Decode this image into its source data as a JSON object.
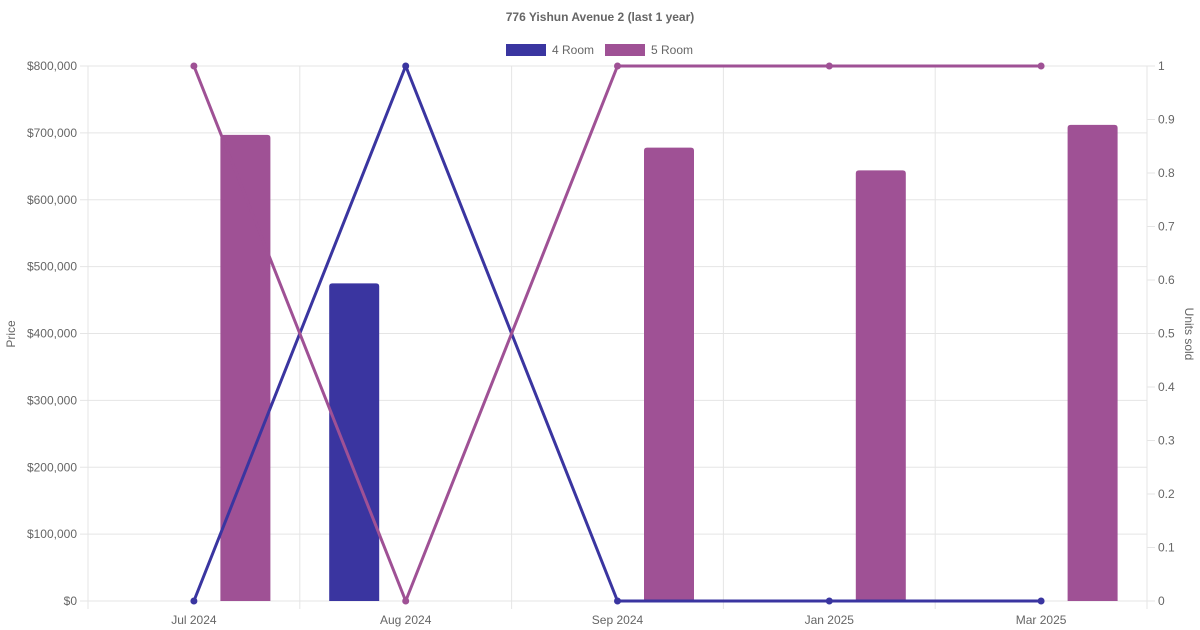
{
  "chart_data": {
    "type": "bar",
    "title": "776 Yishun Avenue 2 (last 1 year)",
    "categories": [
      "Jul 2024",
      "Aug 2024",
      "Sep 2024",
      "Jan 2025",
      "Mar 2025"
    ],
    "y_left": {
      "label": "Price",
      "min": 0,
      "max": 800000,
      "ticks": [
        "$0",
        "$100,000",
        "$200,000",
        "$300,000",
        "$400,000",
        "$500,000",
        "$600,000",
        "$700,000",
        "$800,000"
      ]
    },
    "y_right": {
      "label": "Units sold",
      "min": 0,
      "max": 1,
      "ticks": [
        "0",
        "0.1",
        "0.2",
        "0.3",
        "0.4",
        "0.5",
        "0.6",
        "0.7",
        "0.8",
        "0.9",
        "1"
      ]
    },
    "grid": true,
    "legend_position": "top",
    "series": [
      {
        "name": "4 Room",
        "color": "#3a35a0",
        "bar_values": [
          null,
          475000,
          null,
          null,
          null
        ],
        "units_sold": [
          0,
          1,
          0,
          0,
          0
        ]
      },
      {
        "name": "5 Room",
        "color": "#9f5195",
        "bar_values": [
          697000,
          null,
          678000,
          644000,
          712000
        ],
        "units_sold": [
          1,
          0,
          1,
          1,
          1
        ]
      }
    ]
  }
}
